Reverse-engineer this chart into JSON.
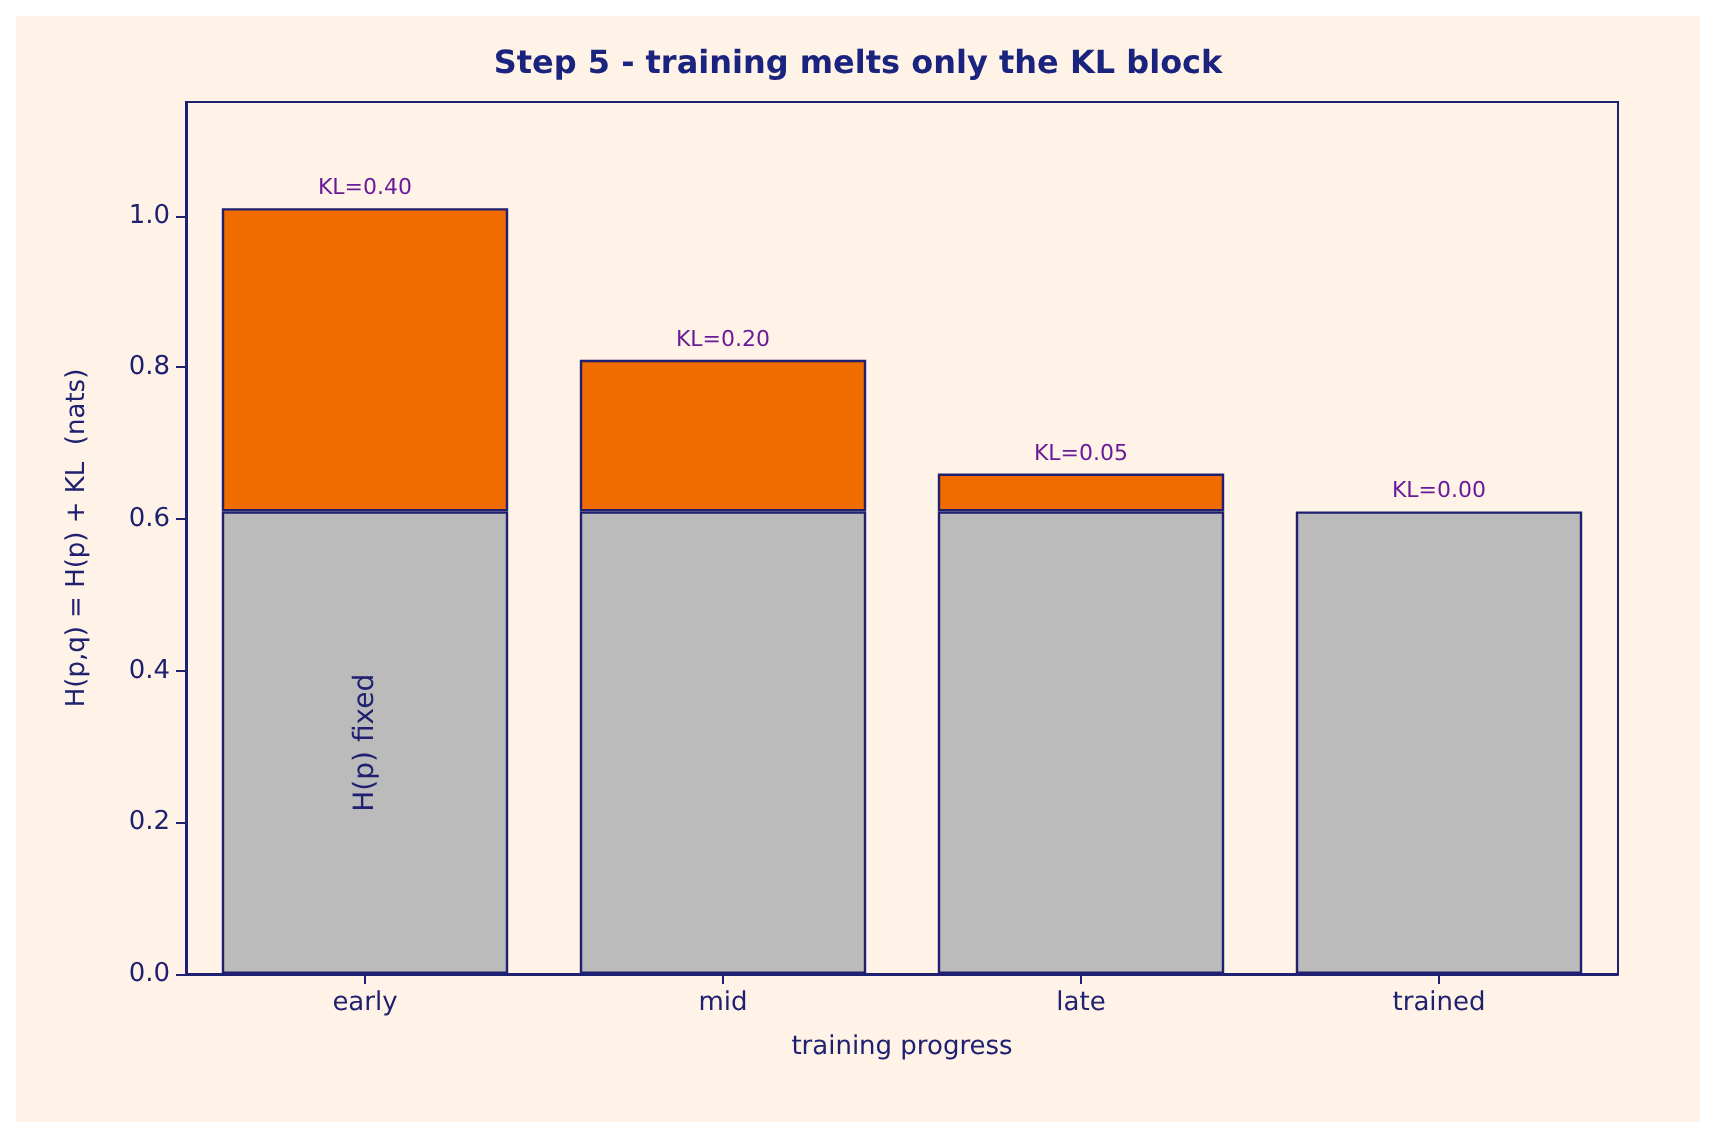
{
  "chart_data": {
    "type": "bar",
    "title": "Step 5 - training melts only the KL block",
    "xlabel": "training progress",
    "ylabel": "H(p,q) = H(p) + KL  (nats)",
    "categories": [
      "early",
      "mid",
      "late",
      "trained"
    ],
    "stacked": true,
    "series": [
      {
        "color": "#bbbbbb",
        "values": [
          0.61,
          0.61,
          0.61,
          0.61
        ]
      },
      {
        "color": "#f06c00",
        "values": [
          0.4,
          0.2,
          0.05,
          0.0
        ],
        "value_labels": [
          "KL=0.40",
          "KL=0.20",
          "KL=0.05",
          "KL=0.00"
        ]
      }
    ],
    "ylim": [
      0,
      1.15
    ],
    "yticks": [
      {
        "value": 0,
        "label": "0.0"
      },
      {
        "value": 0.2,
        "label": "0.2"
      },
      {
        "value": 0.4,
        "label": "0.4"
      },
      {
        "value": 0.6,
        "label": "0.6"
      },
      {
        "value": 0.8,
        "label": "0.8"
      },
      {
        "value": 1.0,
        "label": "1.0"
      }
    ],
    "annotations": [
      "H(p) fixed"
    ],
    "grid": false
  }
}
